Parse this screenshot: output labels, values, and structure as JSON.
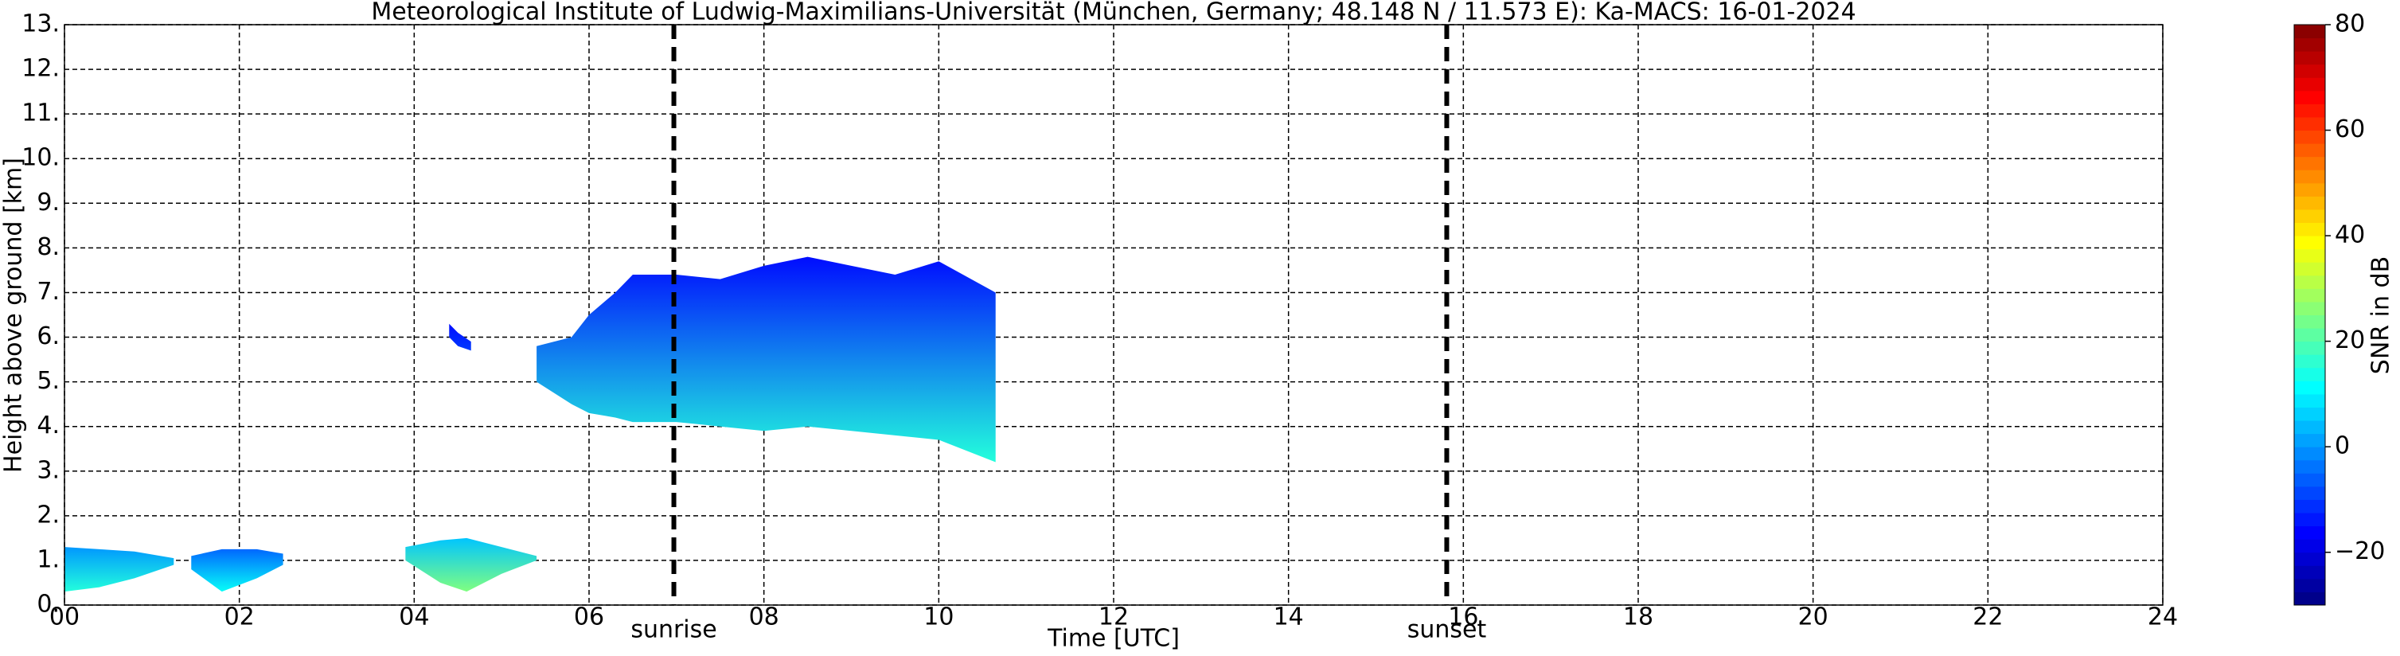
{
  "chart_data": {
    "type": "time-height",
    "title": "Meteorological Institute of Ludwig-Maximilians-Universität (München, Germany; 48.148 N / 11.573 E):    Ka-MACS: 16-01-2024",
    "x_label": "Time [UTC]",
    "y_label": "Height above ground [km]",
    "colorbar_label": "SNR in dB",
    "colormap": "jet",
    "grid": true,
    "xlim": [
      0,
      24
    ],
    "xticks": [
      {
        "value": 0,
        "label": "00"
      },
      {
        "value": 2,
        "label": "02"
      },
      {
        "value": 4,
        "label": "04"
      },
      {
        "value": 6,
        "label": "06"
      },
      {
        "value": 8,
        "label": "08"
      },
      10,
      12,
      14,
      16,
      18,
      20,
      22,
      24
    ],
    "ylim": [
      0,
      13
    ],
    "yticks": [
      {
        "value": 0,
        "label": "0."
      },
      {
        "value": 1,
        "label": "1."
      },
      {
        "value": 2,
        "label": "2."
      },
      {
        "value": 3,
        "label": "3."
      },
      {
        "value": 4,
        "label": "4."
      },
      {
        "value": 5,
        "label": "5."
      },
      {
        "value": 6,
        "label": "6."
      },
      {
        "value": 7,
        "label": "7."
      },
      {
        "value": 8,
        "label": "8."
      },
      {
        "value": 9,
        "label": "9."
      },
      {
        "value": 10,
        "label": "10."
      },
      {
        "value": 11,
        "label": "11."
      },
      {
        "value": 12,
        "label": "12."
      },
      {
        "value": 13,
        "label": "13."
      }
    ],
    "clim": [
      -30,
      80
    ],
    "cticks": [
      {
        "value": -20,
        "label": "−20"
      },
      0,
      20,
      40,
      60,
      80
    ],
    "events": [
      {
        "name": "sunrise",
        "x": 6.97
      },
      {
        "name": "sunset",
        "x": 15.81
      }
    ],
    "echoes": [
      {
        "x": [
          0,
          0.4,
          0.8,
          1.25
        ],
        "top": [
          1.3,
          1.25,
          1.2,
          1.05
        ],
        "base": [
          0.3,
          0.4,
          0.6,
          0.9
        ],
        "snr_base": 15,
        "snr_top": 0
      },
      {
        "x": [
          1.45,
          1.8,
          2.2,
          2.5
        ],
        "top": [
          1.1,
          1.25,
          1.25,
          1.15
        ],
        "base": [
          0.8,
          0.3,
          0.6,
          0.9
        ],
        "snr_base": 12,
        "snr_top": -5
      },
      {
        "x": [
          3.9,
          4.3,
          4.6,
          5.0,
          5.4
        ],
        "top": [
          1.3,
          1.45,
          1.5,
          1.3,
          1.1
        ],
        "base": [
          1.0,
          0.5,
          0.3,
          0.7,
          1.0
        ],
        "snr_base": 25,
        "snr_top": 5
      },
      {
        "x": [
          4.4,
          4.5,
          4.65
        ],
        "top": [
          6.3,
          6.1,
          5.9
        ],
        "base": [
          6.0,
          5.8,
          5.7
        ],
        "snr_base": -10,
        "snr_top": -15
      },
      {
        "x": [
          5.4,
          5.8,
          6.0,
          6.3,
          6.5,
          7.0,
          7.5,
          8.0,
          8.5,
          9.0,
          9.5,
          10.0,
          10.65
        ],
        "top": [
          5.8,
          6.0,
          6.5,
          7.0,
          7.4,
          7.4,
          7.3,
          7.6,
          7.8,
          7.6,
          7.4,
          7.7,
          7.0
        ],
        "base": [
          5.0,
          4.5,
          4.3,
          4.2,
          4.1,
          4.1,
          4.0,
          3.9,
          4.0,
          3.9,
          3.8,
          3.7,
          3.2
        ],
        "snr_base": 15,
        "snr_top": -15
      }
    ]
  }
}
